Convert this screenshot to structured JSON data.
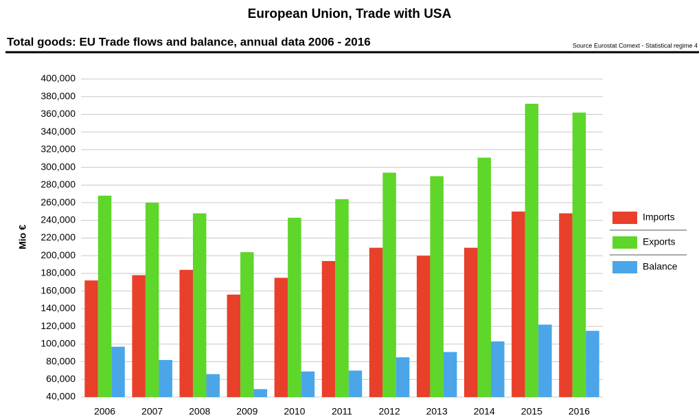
{
  "chart_data": {
    "type": "bar",
    "title": "European Union, Trade with USA",
    "subtitle": "Total goods: EU Trade flows and balance, annual data 2006 - 2016",
    "source": "Source Eurostat Comext  - Statistical regime 4",
    "y_label": "Mio €",
    "categories": [
      "2006",
      "2007",
      "2008",
      "2009",
      "2010",
      "2011",
      "2012",
      "2013",
      "2014",
      "2015",
      "2016"
    ],
    "series": [
      {
        "name": "Imports",
        "color": "#e8402a",
        "values": [
          172000,
          178000,
          184000,
          156000,
          175000,
          194000,
          209000,
          200000,
          209000,
          250000,
          248000
        ]
      },
      {
        "name": "Exports",
        "color": "#5fd62a",
        "values": [
          268000,
          260000,
          248000,
          204000,
          243000,
          264000,
          294000,
          290000,
          311000,
          372000,
          362000
        ]
      },
      {
        "name": "Balance",
        "color": "#4aa6e8",
        "values": [
          97000,
          82000,
          66000,
          49000,
          69000,
          70000,
          85000,
          91000,
          103000,
          122000,
          115000
        ]
      }
    ],
    "ylim": [
      40000,
      400000
    ],
    "yticks": [
      {
        "value": 40000,
        "label": "40,000"
      },
      {
        "value": 60000,
        "label": "60,000"
      },
      {
        "value": 80000,
        "label": "80,000"
      },
      {
        "value": 100000,
        "label": "100,000"
      },
      {
        "value": 120000,
        "label": "120,000"
      },
      {
        "value": 140000,
        "label": "140,000"
      },
      {
        "value": 160000,
        "label": "160,000"
      },
      {
        "value": 180000,
        "label": "180,000"
      },
      {
        "value": 200000,
        "label": "200,000"
      },
      {
        "value": 220000,
        "label": "220,000"
      },
      {
        "value": 240000,
        "label": "240,000"
      },
      {
        "value": 260000,
        "label": "260,000"
      },
      {
        "value": 280000,
        "label": "280,000"
      },
      {
        "value": 300000,
        "label": "300,000"
      },
      {
        "value": 320000,
        "label": "320,000"
      },
      {
        "value": 340000,
        "label": "340,000"
      },
      {
        "value": 360000,
        "label": "360,000"
      },
      {
        "value": 380000,
        "label": "380,000"
      },
      {
        "value": 400000,
        "label": "400,000"
      }
    ],
    "grid": true,
    "legend": "right"
  }
}
